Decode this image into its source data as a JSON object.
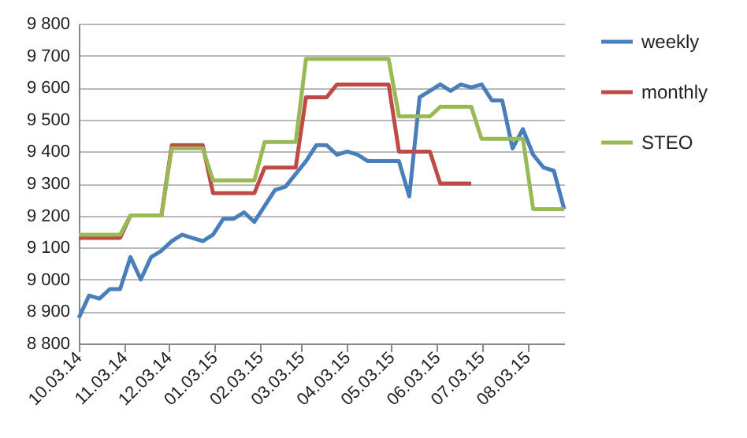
{
  "chart_data": {
    "type": "line",
    "x": [
      "2014-10-03",
      "2014-10-10",
      "2014-10-17",
      "2014-10-24",
      "2014-10-31",
      "2014-11-07",
      "2014-11-14",
      "2014-11-21",
      "2014-11-28",
      "2014-12-05",
      "2014-12-12",
      "2014-12-19",
      "2014-12-26",
      "2015-01-02",
      "2015-01-09",
      "2015-01-16",
      "2015-01-23",
      "2015-01-30",
      "2015-02-06",
      "2015-02-13",
      "2015-02-20",
      "2015-02-27",
      "2015-03-06",
      "2015-03-13",
      "2015-03-20",
      "2015-03-27",
      "2015-04-03",
      "2015-04-10",
      "2015-04-17",
      "2015-04-24",
      "2015-05-01",
      "2015-05-08",
      "2015-05-15",
      "2015-05-22",
      "2015-05-29",
      "2015-06-05",
      "2015-06-12",
      "2015-06-19",
      "2015-06-26",
      "2015-07-03",
      "2015-07-10",
      "2015-07-17",
      "2015-07-24",
      "2015-07-31",
      "2015-08-07",
      "2015-08-14",
      "2015-08-21",
      "2015-08-28"
    ],
    "series": [
      {
        "name": "weekly",
        "color": "#4a7ebb",
        "values": [
          8880,
          8950,
          8940,
          8970,
          8970,
          9070,
          9000,
          9070,
          9090,
          9120,
          9140,
          9130,
          9120,
          9140,
          9190,
          9190,
          9210,
          9180,
          9230,
          9280,
          9290,
          9330,
          9370,
          9420,
          9420,
          9390,
          9400,
          9390,
          9370,
          9370,
          9370,
          9370,
          9260,
          9570,
          9590,
          9610,
          9590,
          9610,
          9600,
          9610,
          9560,
          9560,
          9410,
          9470,
          9390,
          9350,
          9340,
          9220
        ]
      },
      {
        "name": "monthly",
        "color": "#be4b48",
        "values": [
          9130,
          9130,
          9130,
          9130,
          9130,
          9200,
          null,
          null,
          9200,
          9420,
          9420,
          9420,
          9420,
          9270,
          9270,
          9270,
          9270,
          9270,
          9350,
          9350,
          9350,
          9350,
          9570,
          9570,
          9570,
          9610,
          9610,
          9610,
          9610,
          9610,
          9610,
          9400,
          9400,
          9400,
          9400,
          9300,
          9300,
          9300,
          9300,
          null,
          null,
          null,
          null,
          null,
          null,
          null,
          null,
          null
        ]
      },
      {
        "name": "STEO",
        "color": "#98b954",
        "values": [
          9140,
          9140,
          9140,
          9140,
          9140,
          9200,
          9200,
          9200,
          9200,
          9410,
          9410,
          9410,
          9410,
          9310,
          9310,
          9310,
          9310,
          9310,
          9430,
          9430,
          9430,
          9430,
          9690,
          9690,
          9690,
          9690,
          9690,
          9690,
          9690,
          9690,
          9690,
          9510,
          9510,
          9510,
          9510,
          9540,
          9540,
          9540,
          9540,
          9440,
          9440,
          9440,
          9440,
          9440,
          9220,
          9220,
          9220,
          9220
        ]
      }
    ],
    "xlim": [
      "2014-10-03",
      "2015-08-28"
    ],
    "xticks": [
      {
        "value": "2014-10-03",
        "label": "10.03.14"
      },
      {
        "value": "2014-11-03",
        "label": "11.03.14"
      },
      {
        "value": "2014-12-03",
        "label": "12.03.14"
      },
      {
        "value": "2015-01-03",
        "label": "01.03.15"
      },
      {
        "value": "2015-02-03",
        "label": "02.03.15"
      },
      {
        "value": "2015-03-03",
        "label": "03.03.15"
      },
      {
        "value": "2015-04-03",
        "label": "04.03.15"
      },
      {
        "value": "2015-05-03",
        "label": "05.03.15"
      },
      {
        "value": "2015-06-03",
        "label": "06.03.15"
      },
      {
        "value": "2015-07-03",
        "label": "07.03.15"
      },
      {
        "value": "2015-08-03",
        "label": "08.03.15"
      }
    ],
    "ylim": [
      8800,
      9800
    ],
    "yticks": [
      {
        "value": 8800,
        "label": "8 800"
      },
      {
        "value": 8900,
        "label": "8 900"
      },
      {
        "value": 9000,
        "label": "9 000"
      },
      {
        "value": 9100,
        "label": "9 100"
      },
      {
        "value": 9200,
        "label": "9 200"
      },
      {
        "value": 9300,
        "label": "9 300"
      },
      {
        "value": 9400,
        "label": "9 400"
      },
      {
        "value": 9500,
        "label": "9 500"
      },
      {
        "value": 9600,
        "label": "9 600"
      },
      {
        "value": 9700,
        "label": "9 700"
      },
      {
        "value": 9800,
        "label": "9 800"
      }
    ],
    "grid": "y",
    "legend": "right"
  }
}
